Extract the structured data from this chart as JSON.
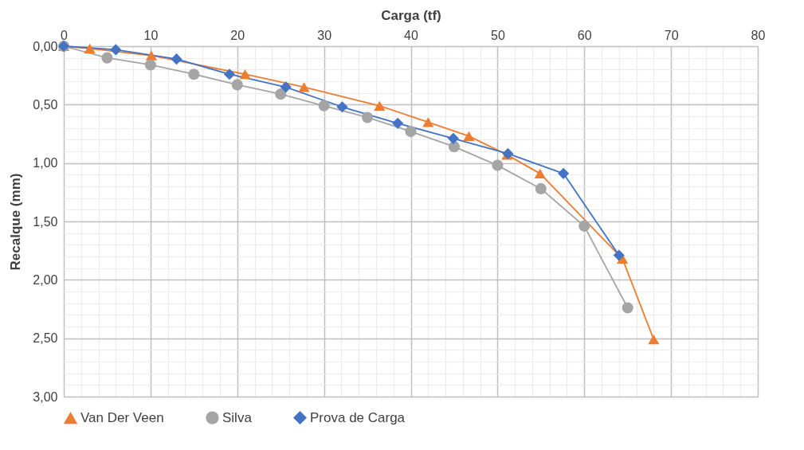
{
  "chart_data": {
    "type": "line",
    "xlabel": "Carga (tf)",
    "ylabel": "Recalque (mm)",
    "xlim": [
      0,
      80
    ],
    "ylim": [
      3,
      0
    ],
    "xticks": [
      0,
      {
        "value": 2,
        "label": null
      },
      {
        "value": 4,
        "label": null
      },
      {
        "value": 6,
        "label": null
      },
      {
        "value": 8,
        "label": null
      },
      10,
      {
        "value": 12,
        "label": null
      },
      {
        "value": 14,
        "label": null
      },
      {
        "value": 16,
        "label": null
      },
      {
        "value": 18,
        "label": null
      },
      20,
      {
        "value": 22,
        "label": null
      },
      {
        "value": 24,
        "label": null
      },
      {
        "value": 26,
        "label": null
      },
      {
        "value": 28,
        "label": null
      },
      30,
      {
        "value": 32,
        "label": null
      },
      {
        "value": 34,
        "label": null
      },
      {
        "value": 36,
        "label": null
      },
      {
        "value": 38,
        "label": null
      },
      40,
      {
        "value": 42,
        "label": null
      },
      {
        "value": 44,
        "label": null
      },
      {
        "value": 46,
        "label": null
      },
      {
        "value": 48,
        "label": null
      },
      50,
      {
        "value": 52,
        "label": null
      },
      {
        "value": 54,
        "label": null
      },
      {
        "value": 56,
        "label": null
      },
      {
        "value": 58,
        "label": null
      },
      60,
      {
        "value": 62,
        "label": null
      },
      {
        "value": 64,
        "label": null
      },
      {
        "value": 66,
        "label": null
      },
      {
        "value": 68,
        "label": null
      },
      70,
      {
        "value": 72,
        "label": null
      },
      {
        "value": 74,
        "label": null
      },
      {
        "value": 76,
        "label": null
      },
      {
        "value": 78,
        "label": null
      },
      80
    ],
    "yticks": [
      {
        "value": 0,
        "label": "0,00"
      },
      {
        "value": 0.1,
        "label": null
      },
      {
        "value": 0.2,
        "label": null
      },
      {
        "value": 0.3,
        "label": null
      },
      {
        "value": 0.4,
        "label": null
      },
      {
        "value": 0.5,
        "label": "0,50"
      },
      {
        "value": 0.6,
        "label": null
      },
      {
        "value": 0.7,
        "label": null
      },
      {
        "value": 0.8,
        "label": null
      },
      {
        "value": 0.9,
        "label": null
      },
      {
        "value": 1,
        "label": "1,00"
      },
      {
        "value": 1.1,
        "label": null
      },
      {
        "value": 1.2,
        "label": null
      },
      {
        "value": 1.3,
        "label": null
      },
      {
        "value": 1.4,
        "label": null
      },
      {
        "value": 1.5,
        "label": "1,50"
      },
      {
        "value": 1.6,
        "label": null
      },
      {
        "value": 1.7,
        "label": null
      },
      {
        "value": 1.8,
        "label": null
      },
      {
        "value": 1.9,
        "label": null
      },
      {
        "value": 2,
        "label": "2,00"
      },
      {
        "value": 2.1,
        "label": null
      },
      {
        "value": 2.2,
        "label": null
      },
      {
        "value": 2.3,
        "label": null
      },
      {
        "value": 2.4,
        "label": null
      },
      {
        "value": 2.5,
        "label": "2,50"
      },
      {
        "value": 2.6,
        "label": null
      },
      {
        "value": 2.7,
        "label": null
      },
      {
        "value": 2.8,
        "label": null
      },
      {
        "value": 2.9,
        "label": null
      },
      {
        "value": 3,
        "label": "3,00"
      }
    ],
    "grid": true,
    "legend": "bottom",
    "series": [
      {
        "name": "Van Der Veen",
        "color": "#ed7d31",
        "marker": "triangle",
        "x": [
          0,
          3,
          10.1,
          20.9,
          27.7,
          36.4,
          42,
          46.7,
          51.1,
          54.9,
          64.4,
          68
        ],
        "values": [
          0,
          0.02,
          0.08,
          0.24,
          0.35,
          0.51,
          0.65,
          0.77,
          0.93,
          1.09,
          1.82,
          2.51
        ]
      },
      {
        "name": "Silva",
        "color": "#a5a5a5",
        "marker": "circle",
        "x": [
          0,
          5,
          10,
          15,
          20,
          25,
          30,
          35,
          40,
          45,
          50,
          55,
          60,
          65
        ],
        "values": [
          0,
          0.1,
          0.16,
          0.24,
          0.33,
          0.41,
          0.51,
          0.61,
          0.73,
          0.86,
          1.02,
          1.22,
          1.54,
          2.24
        ]
      },
      {
        "name": "Prova de Carga",
        "color": "#4472c4",
        "marker": "diamond",
        "x": [
          0,
          6,
          13,
          19.1,
          25.6,
          32.1,
          38.5,
          44.9,
          51.2,
          57.6,
          64
        ],
        "values": [
          0,
          0.03,
          0.11,
          0.24,
          0.35,
          0.52,
          0.66,
          0.79,
          0.92,
          1.09,
          1.79
        ]
      }
    ]
  }
}
